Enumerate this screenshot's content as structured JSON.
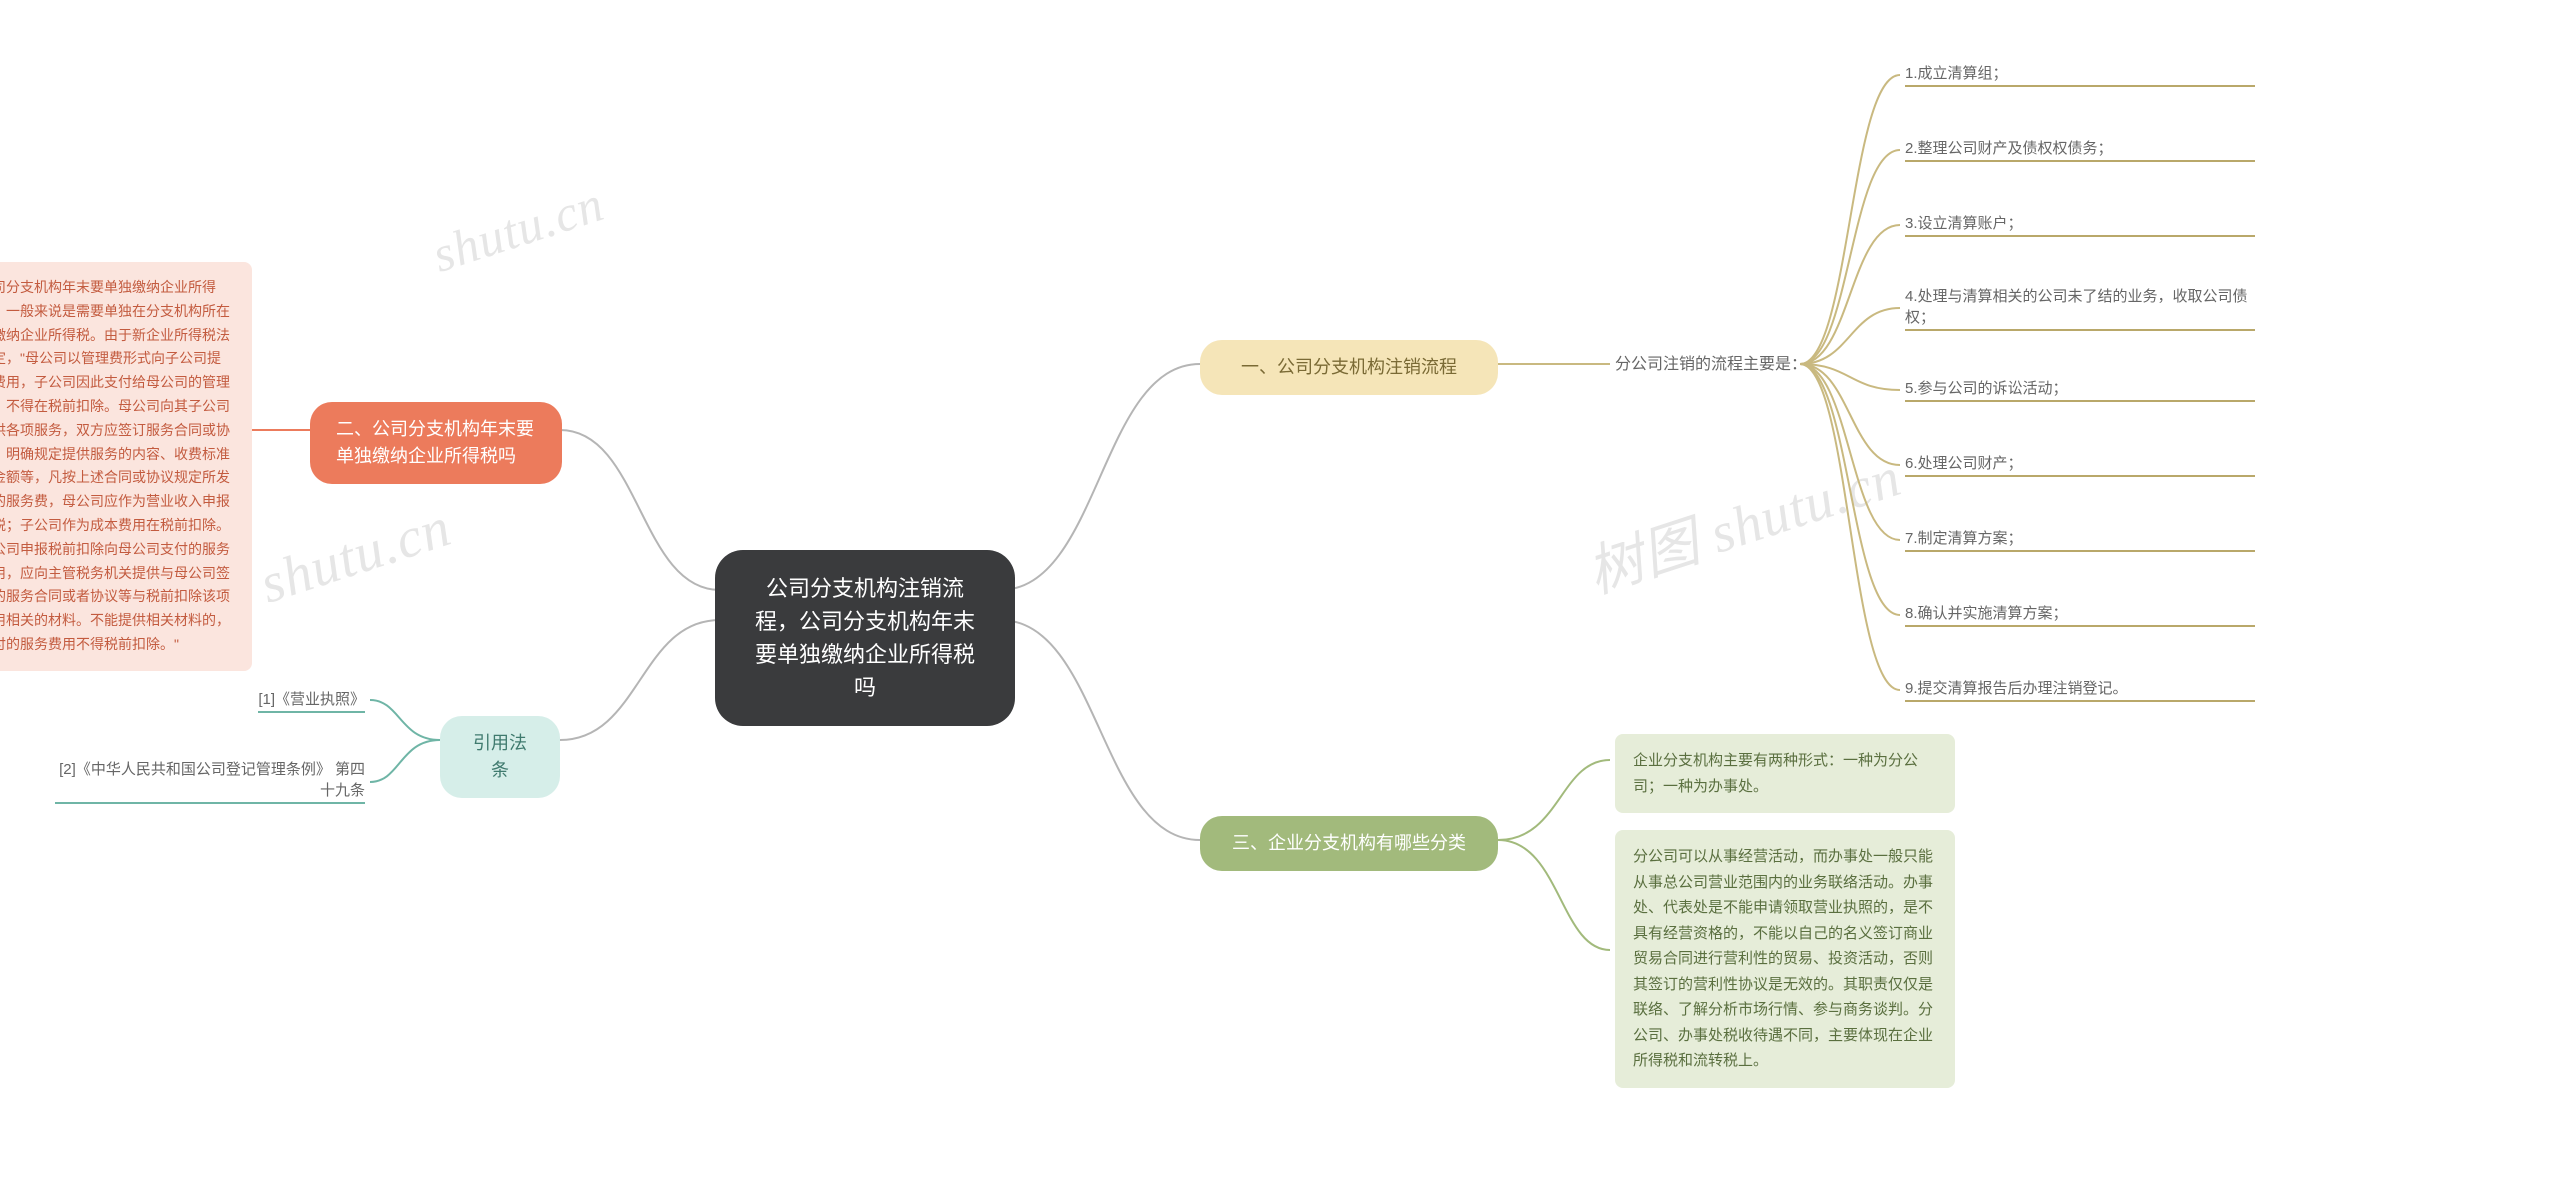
{
  "center": {
    "title": "公司分支机构注销流程，公司分支机构年末要单独缴纳企业所得税吗"
  },
  "branch1": {
    "label": "一、公司分支机构注销流程",
    "bg": "#f5e5b8",
    "text": "#7a6a35",
    "sublabel": "分公司注销的流程主要是：",
    "subcolor": "#666666",
    "leaf_color": "#b9a86a",
    "leaves": [
      "1.成立清算组；",
      "2.整理公司财产及债权权债务；",
      "3.设立清算账户；",
      "4.处理与清算相关的公司未了结的业务，收取公司债权；",
      "5.参与公司的诉讼活动；",
      "6.处理公司财产；",
      "7.制定清算方案；",
      "8.确认并实施清算方案；",
      "9.提交清算报告后办理注销登记。"
    ]
  },
  "branch2": {
    "label": "二、公司分支机构年末要单独缴纳企业所得税吗",
    "bg": "#ec7b5c",
    "text": "#ffffff",
    "detail_bg": "#fbe5de",
    "detail_text": "#c35b3f",
    "detail": "公司分支机构年末要单独缴纳企业所得税，一般来说是需要单独在分支机构所在地缴纳企业所得税。由于新企业所得税法规定，\"母公司以管理费形式向子公司提取费用，子公司因此支付给母公司的管理费，不得在税前扣除。母公司向其子公司提供各项服务，双方应签订服务合同或协议，明确规定提供服务的内容、收费标准及金额等，凡按上述合同或协议规定所发生的服务费，母公司应作为营业收入申报纳税；子公司作为成本费用在税前扣除。子公司申报税前扣除向母公司支付的服务费用，应向主管税务机关提供与母公司签订的服务合同或者协议等与税前扣除该项费用相关的材料。不能提供相关材料的，支付的服务费用不得税前扣除。\""
  },
  "branch3": {
    "label": "三、企业分支机构有哪些分类",
    "bg": "#a2ba7c",
    "text": "#ffffff",
    "leaf_bg": "#e6edd9",
    "leaf_text": "#5a6f3f",
    "leaf_color": "#a2ba7c",
    "leaves": [
      "企业分支机构主要有两种形式：一种为分公司；一种为办事处。",
      "分公司可以从事经营活动，而办事处一般只能从事总公司营业范围内的业务联络活动。办事处、代表处是不能申请领取营业执照的，是不具有经营资格的，不能以自己的名义签订商业贸易合同进行营利性的贸易、投资活动，否则其签订的营利性协议是无效的。其职责仅仅是联络、了解分析市场行情、参与商务谈判。分公司、办事处税收待遇不同，主要体现在企业所得税和流转税上。"
    ]
  },
  "branch4": {
    "label": "引用法条",
    "bg": "#d6eee9",
    "text": "#3f7a6e",
    "leaf_color": "#6fb5a6",
    "leaves": [
      "[1]《营业执照》",
      "[2]《中华人民共和国公司登记管理条例》 第四十九条"
    ]
  },
  "watermarks": [
    "树图 shutu.cn",
    "shutu.cn",
    "树图 shutu.cn"
  ],
  "colors": {
    "center_bg": "#3a3b3d",
    "center_text": "#ffffff",
    "connector_main": "#b5b5b5",
    "bg": "#ffffff"
  }
}
